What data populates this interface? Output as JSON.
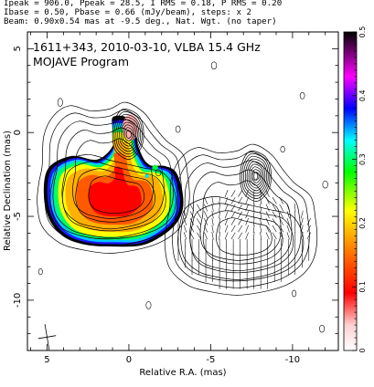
{
  "header": {
    "line1": "Ipeak = 906.0, Ppeak = 28.5, I RMS = 0.18, P RMS = 0.20",
    "line2": "Ibase = 0.50, Pbase = 0.66 (mJy/beam), steps: x 2",
    "line3": "Beam: 0.90x0.54 mas at -9.5 deg., Nat. Wgt. (no taper)"
  },
  "chart_data": {
    "type": "heatmap",
    "title": "1611+343, 2010-03-10, VLBA 15.4 GHz",
    "subtitle": "MOJAVE Program",
    "xlabel": "Relative R.A. (mas)",
    "ylabel": "Relative Declination (mas)",
    "xlim": [
      6.2,
      -12.8
    ],
    "ylim": [
      -13.0,
      6.0
    ],
    "x_ticks": [
      {
        "value": 5,
        "label": "5"
      },
      {
        "value": 0,
        "label": "0"
      },
      {
        "value": -5,
        "label": "-5"
      },
      {
        "value": -10,
        "label": "-10"
      }
    ],
    "y_ticks": [
      {
        "value": 5,
        "label": "5"
      },
      {
        "value": 0,
        "label": "0"
      },
      {
        "value": -5,
        "label": "-5"
      },
      {
        "value": -10,
        "label": "-10"
      }
    ],
    "colorbar": {
      "min": 0,
      "max": 0.5,
      "ticks": [
        {
          "value": 0,
          "label": "0"
        },
        {
          "value": 0.1,
          "label": "0.1"
        },
        {
          "value": 0.2,
          "label": "0.2"
        },
        {
          "value": 0.3,
          "label": "0.3"
        },
        {
          "value": 0.4,
          "label": "0.4"
        },
        {
          "value": 0.5,
          "label": "0.5"
        }
      ],
      "colors": [
        "#ffffff",
        "#ff0000",
        "#ff8000",
        "#ffff00",
        "#00ff00",
        "#00ffff",
        "#0000ff",
        "#ff00ff",
        "#000000"
      ]
    },
    "core": {
      "x": 0.0,
      "y": 0.0,
      "peak_mJy": 906.0
    },
    "beam": {
      "major": 0.9,
      "minor": 0.54,
      "pa_deg": -9.5,
      "x": 5.0,
      "y": -12.2
    },
    "panels": [
      {
        "name": "total intensity with fractional polarization",
        "offset": [
          0,
          0
        ]
      },
      {
        "name": "total intensity with EVPA ticks",
        "offset": [
          -7.8,
          -2.5
        ]
      }
    ]
  }
}
